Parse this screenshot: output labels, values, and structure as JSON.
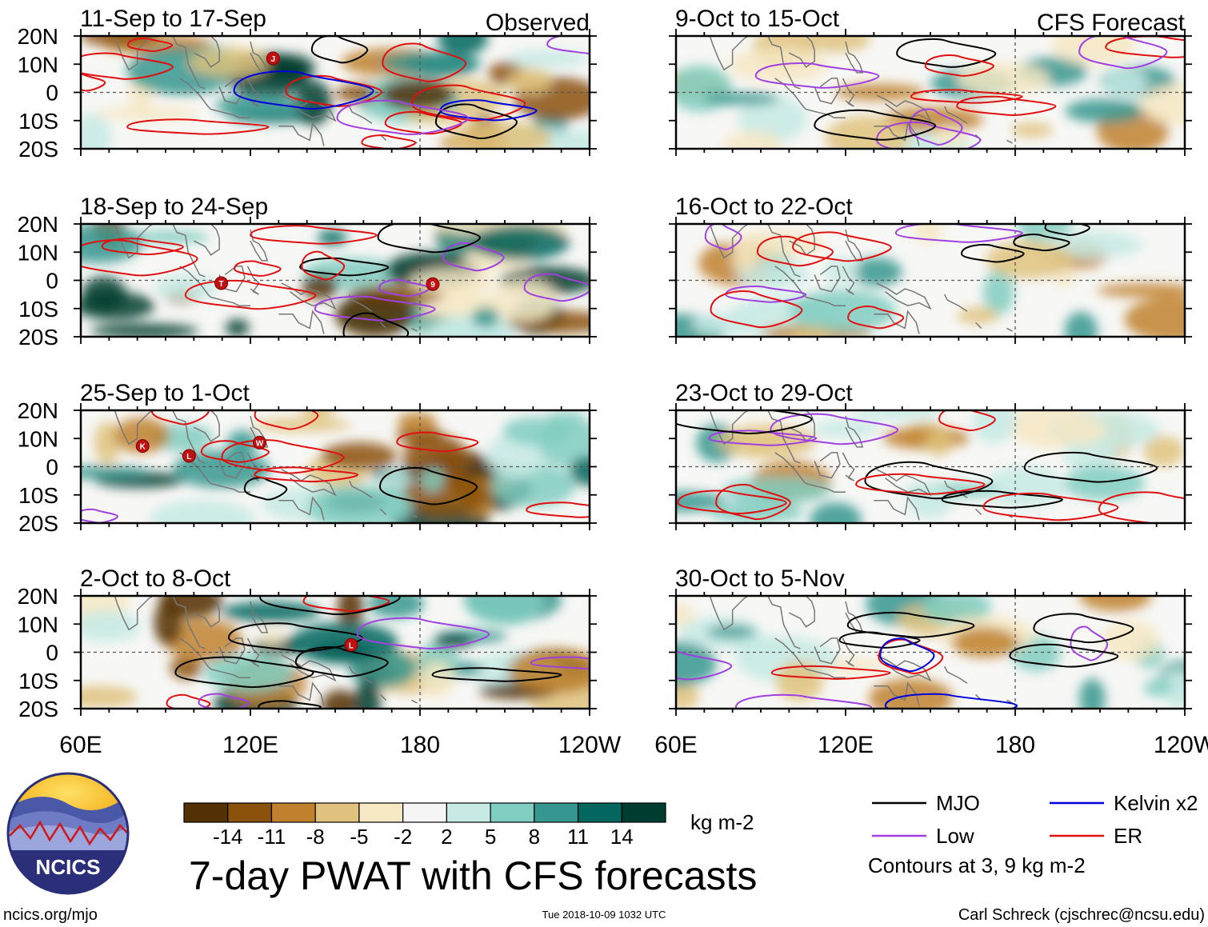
{
  "title": "7-day PWAT with CFS forecasts",
  "units": "kg m-2",
  "column_labels": {
    "observed": "Observed",
    "forecast": "CFS Forecast"
  },
  "lat_labels": [
    "20N",
    "10N",
    "0",
    "10S",
    "20S"
  ],
  "lon_labels": [
    "60E",
    "120E",
    "180",
    "120W"
  ],
  "panels": [
    {
      "id": "p1",
      "title": "11-Sep to 17-Sep",
      "type": "observed"
    },
    {
      "id": "p2",
      "title": "18-Sep to 24-Sep",
      "type": "observed"
    },
    {
      "id": "p3",
      "title": "25-Sep to 1-Oct",
      "type": "observed"
    },
    {
      "id": "p4",
      "title": "2-Oct to 8-Oct",
      "type": "observed"
    },
    {
      "id": "p5",
      "title": "9-Oct to 15-Oct",
      "type": "forecast"
    },
    {
      "id": "p6",
      "title": "16-Oct to 22-Oct",
      "type": "forecast"
    },
    {
      "id": "p7",
      "title": "23-Oct to 29-Oct",
      "type": "forecast"
    },
    {
      "id": "p8",
      "title": "30-Oct to 5-Nov",
      "type": "forecast"
    }
  ],
  "colorbar": {
    "labels": [
      "-14",
      "-11",
      "-8",
      "-5",
      "-2",
      "2",
      "5",
      "8",
      "11",
      "14"
    ],
    "colors": [
      "#543005",
      "#8c510a",
      "#bf812d",
      "#dfc27d",
      "#f6e8c3",
      "#f5f5f5",
      "#c7eae5",
      "#80cdc1",
      "#35978f",
      "#01665e",
      "#003c30"
    ]
  },
  "legend": {
    "items": [
      {
        "label": "MJO",
        "color": "#000000"
      },
      {
        "label": "Kelvin x2",
        "color": "#0000dd"
      },
      {
        "label": "Low",
        "color": "#a040e0"
      },
      {
        "label": "ER",
        "color": "#e01010"
      }
    ],
    "note": "Contours at 3, 9 kg m-2"
  },
  "storm_markers": [
    {
      "panel": "p1",
      "letter": "J"
    },
    {
      "panel": "p2",
      "letter": "9"
    },
    {
      "panel": "p2",
      "letter": "T"
    },
    {
      "panel": "p3",
      "letter": "K"
    },
    {
      "panel": "p3",
      "letter": "L"
    },
    {
      "panel": "p3",
      "letter": "W"
    },
    {
      "panel": "p4",
      "letter": "L"
    }
  ],
  "logo_text": "NCICS",
  "footer": {
    "left": "ncics.org/mjo",
    "center": "Tue 2018-10-09 1032 UTC",
    "right": "Carl Schreck (cjschrec@ncsu.edu)"
  }
}
